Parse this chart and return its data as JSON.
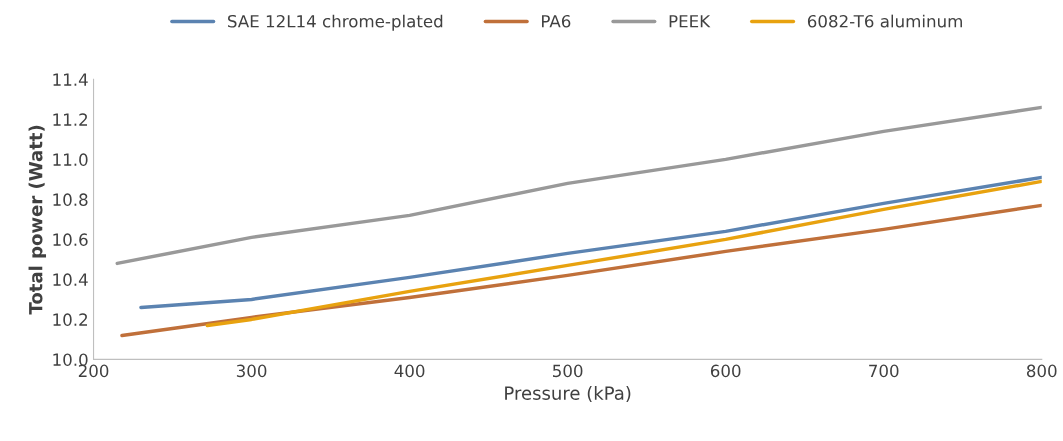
{
  "chart_data": {
    "type": "line",
    "xlabel": "Pressure (kPa)",
    "ylabel": "Total power (Watt)",
    "xlim": [
      200,
      800
    ],
    "xticks": [
      200,
      300,
      400,
      500,
      600,
      700,
      800
    ],
    "ylim": [
      10.0,
      11.4
    ],
    "yticks": [
      {
        "value": 10.0,
        "label": "10.0"
      },
      {
        "value": 10.2,
        "label": "10.2"
      },
      {
        "value": 10.4,
        "label": "10.4"
      },
      {
        "value": 10.6,
        "label": "10.6"
      },
      {
        "value": 10.8,
        "label": "10.8"
      },
      {
        "value": 11.0,
        "label": "11.0"
      },
      {
        "value": 11.2,
        "label": "11.2"
      },
      {
        "value": 11.4,
        "label": "11.4"
      }
    ],
    "grid": false,
    "legend": "top",
    "marker": "none",
    "line_style": "solid",
    "series": [
      {
        "name": "SAE 12L14 chrome-plated",
        "color": "#5b83b1",
        "x": [
          230,
          300,
          400,
          500,
          600,
          700,
          800
        ],
        "values": [
          10.26,
          10.3,
          10.41,
          10.53,
          10.64,
          10.78,
          10.91
        ]
      },
      {
        "name": "PA6",
        "color": "#c0703a",
        "x": [
          218,
          300,
          400,
          500,
          600,
          700,
          800
        ],
        "values": [
          10.12,
          10.21,
          10.31,
          10.42,
          10.54,
          10.65,
          10.77
        ]
      },
      {
        "name": "PEEK",
        "color": "#999999",
        "x": [
          215,
          300,
          400,
          500,
          600,
          700,
          800
        ],
        "values": [
          10.48,
          10.61,
          10.72,
          10.88,
          11.0,
          11.14,
          11.26
        ]
      },
      {
        "name": "6082-T6 aluminum",
        "color": "#e8a20f",
        "x": [
          272,
          300,
          400,
          500,
          600,
          700,
          800
        ],
        "values": [
          10.17,
          10.2,
          10.34,
          10.47,
          10.6,
          10.75,
          10.89
        ]
      }
    ]
  }
}
